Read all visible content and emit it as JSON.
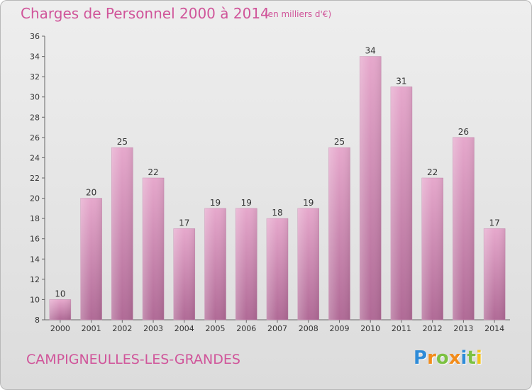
{
  "header": {
    "title": "Charges de Personnel 2000 à 2014",
    "subtitle": "(en milliers d'€)"
  },
  "footer": {
    "commune": "CAMPIGNEULLES-LES-GRANDES",
    "logo_letters": [
      "P",
      "r",
      "o",
      "x",
      "i",
      "t",
      "i"
    ],
    "logo_colors": [
      "#2e8bd8",
      "#f28c1b",
      "#7cc142",
      "#f28c1b",
      "#2e8bd8",
      "#7cc142",
      "#f2c21b"
    ]
  },
  "chart_data": {
    "type": "bar",
    "categories": [
      "2000",
      "2001",
      "2002",
      "2003",
      "2004",
      "2005",
      "2006",
      "2007",
      "2008",
      "2009",
      "2010",
      "2011",
      "2012",
      "2013",
      "2014"
    ],
    "values": [
      10,
      20,
      25,
      22,
      17,
      19,
      19,
      18,
      19,
      25,
      34,
      31,
      22,
      26,
      17
    ],
    "ylim": [
      8,
      36
    ],
    "yticks": [
      8,
      10,
      12,
      14,
      16,
      18,
      20,
      22,
      24,
      26,
      28,
      30,
      32,
      34,
      36
    ],
    "grid": false,
    "bar_color": "#d47fae"
  }
}
